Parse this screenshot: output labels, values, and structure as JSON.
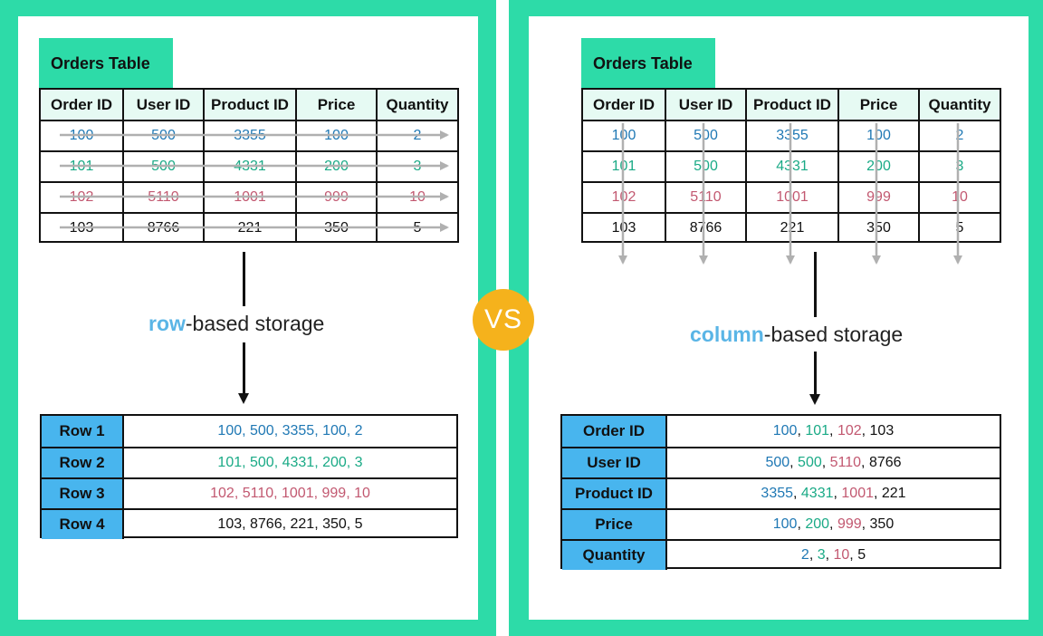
{
  "vs_label": "VS",
  "left": {
    "table_title": "Orders Table",
    "headers": [
      "Order ID",
      "User ID",
      "Product ID",
      "Price",
      "Quantity"
    ],
    "rows": [
      [
        "100",
        "500",
        "3355",
        "100",
        "2"
      ],
      [
        "101",
        "500",
        "4331",
        "200",
        "3"
      ],
      [
        "102",
        "5110",
        "1001",
        "999",
        "10"
      ],
      [
        "103",
        "8766",
        "221",
        "350",
        "5"
      ]
    ],
    "storage_keyword": "row",
    "storage_suffix": "-based storage",
    "stored_keys": [
      "Row 1",
      "Row 2",
      "Row 3",
      "Row 4"
    ],
    "stored_values": [
      "100, 500, 3355, 100, 2",
      "101, 500, 4331, 200, 3",
      "102, 5110, 1001, 999, 10",
      "103, 8766, 221, 350, 5"
    ]
  },
  "right": {
    "table_title": "Orders Table",
    "headers": [
      "Order ID",
      "User ID",
      "Product ID",
      "Price",
      "Quantity"
    ],
    "rows": [
      [
        "100",
        "500",
        "3355",
        "100",
        "2"
      ],
      [
        "101",
        "500",
        "4331",
        "200",
        "3"
      ],
      [
        "102",
        "5110",
        "1001",
        "999",
        "10"
      ],
      [
        "103",
        "8766",
        "221",
        "350",
        "5"
      ]
    ],
    "storage_keyword": "column",
    "storage_suffix": "-based storage",
    "stored_keys": [
      "Order ID",
      "User ID",
      "Product ID",
      "Price",
      "Quantity"
    ],
    "stored_values": [
      [
        "100",
        "101",
        "102",
        "103"
      ],
      [
        "500",
        "500",
        "5110",
        "8766"
      ],
      [
        "3355",
        "4331",
        "1001",
        "221"
      ],
      [
        "100",
        "200",
        "999",
        "350"
      ],
      [
        "2",
        "3",
        "10",
        "5"
      ]
    ]
  },
  "colors": {
    "background": "#2ddba8",
    "row1": "#1f78b4",
    "row2": "#1aaa86",
    "row3": "#c25870",
    "row4": "#111111",
    "keyword": "#5ab5e6",
    "key_cell": "#48b5ee",
    "header_cell": "#e6faf3",
    "vs_circle": "#f5b21c"
  }
}
